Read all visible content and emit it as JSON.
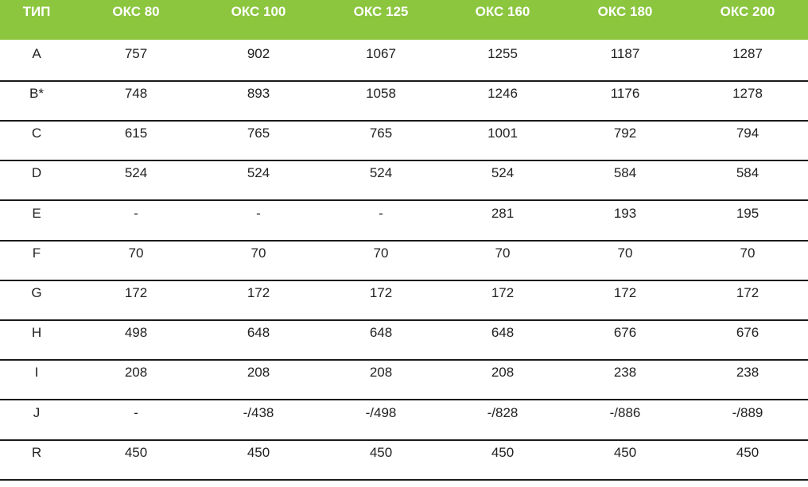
{
  "table": {
    "headers": [
      "ТИП",
      "ОКС 80",
      "ОКС 100",
      "ОКС 125",
      "ОКС 160",
      "ОКС 180",
      "ОКС 200"
    ],
    "rows": [
      [
        "A",
        "757",
        "902",
        "1067",
        "1255",
        "1187",
        "1287"
      ],
      [
        "B*",
        "748",
        "893",
        "1058",
        "1246",
        "1176",
        "1278"
      ],
      [
        "C",
        "615",
        "765",
        "765",
        "1001",
        "792",
        "794"
      ],
      [
        "D",
        "524",
        "524",
        "524",
        "524",
        "584",
        "584"
      ],
      [
        "E",
        "-",
        "-",
        "-",
        "281",
        "193",
        "195"
      ],
      [
        "F",
        "70",
        "70",
        "70",
        "70",
        "70",
        "70"
      ],
      [
        "G",
        "172",
        "172",
        "172",
        "172",
        "172",
        "172"
      ],
      [
        "H",
        "498",
        "648",
        "648",
        "648",
        "676",
        "676"
      ],
      [
        "I",
        "208",
        "208",
        "208",
        "208",
        "238",
        "238"
      ],
      [
        "J",
        "-",
        "-/438",
        "-/498",
        "-/828",
        "-/886",
        "-/889"
      ],
      [
        "R",
        "450",
        "450",
        "450",
        "450",
        "450",
        "450"
      ]
    ]
  },
  "colors": {
    "header_bg": "#8cc63f",
    "header_text": "#ffffff",
    "rule": "#1a1a1a",
    "body_text": "#222222"
  }
}
